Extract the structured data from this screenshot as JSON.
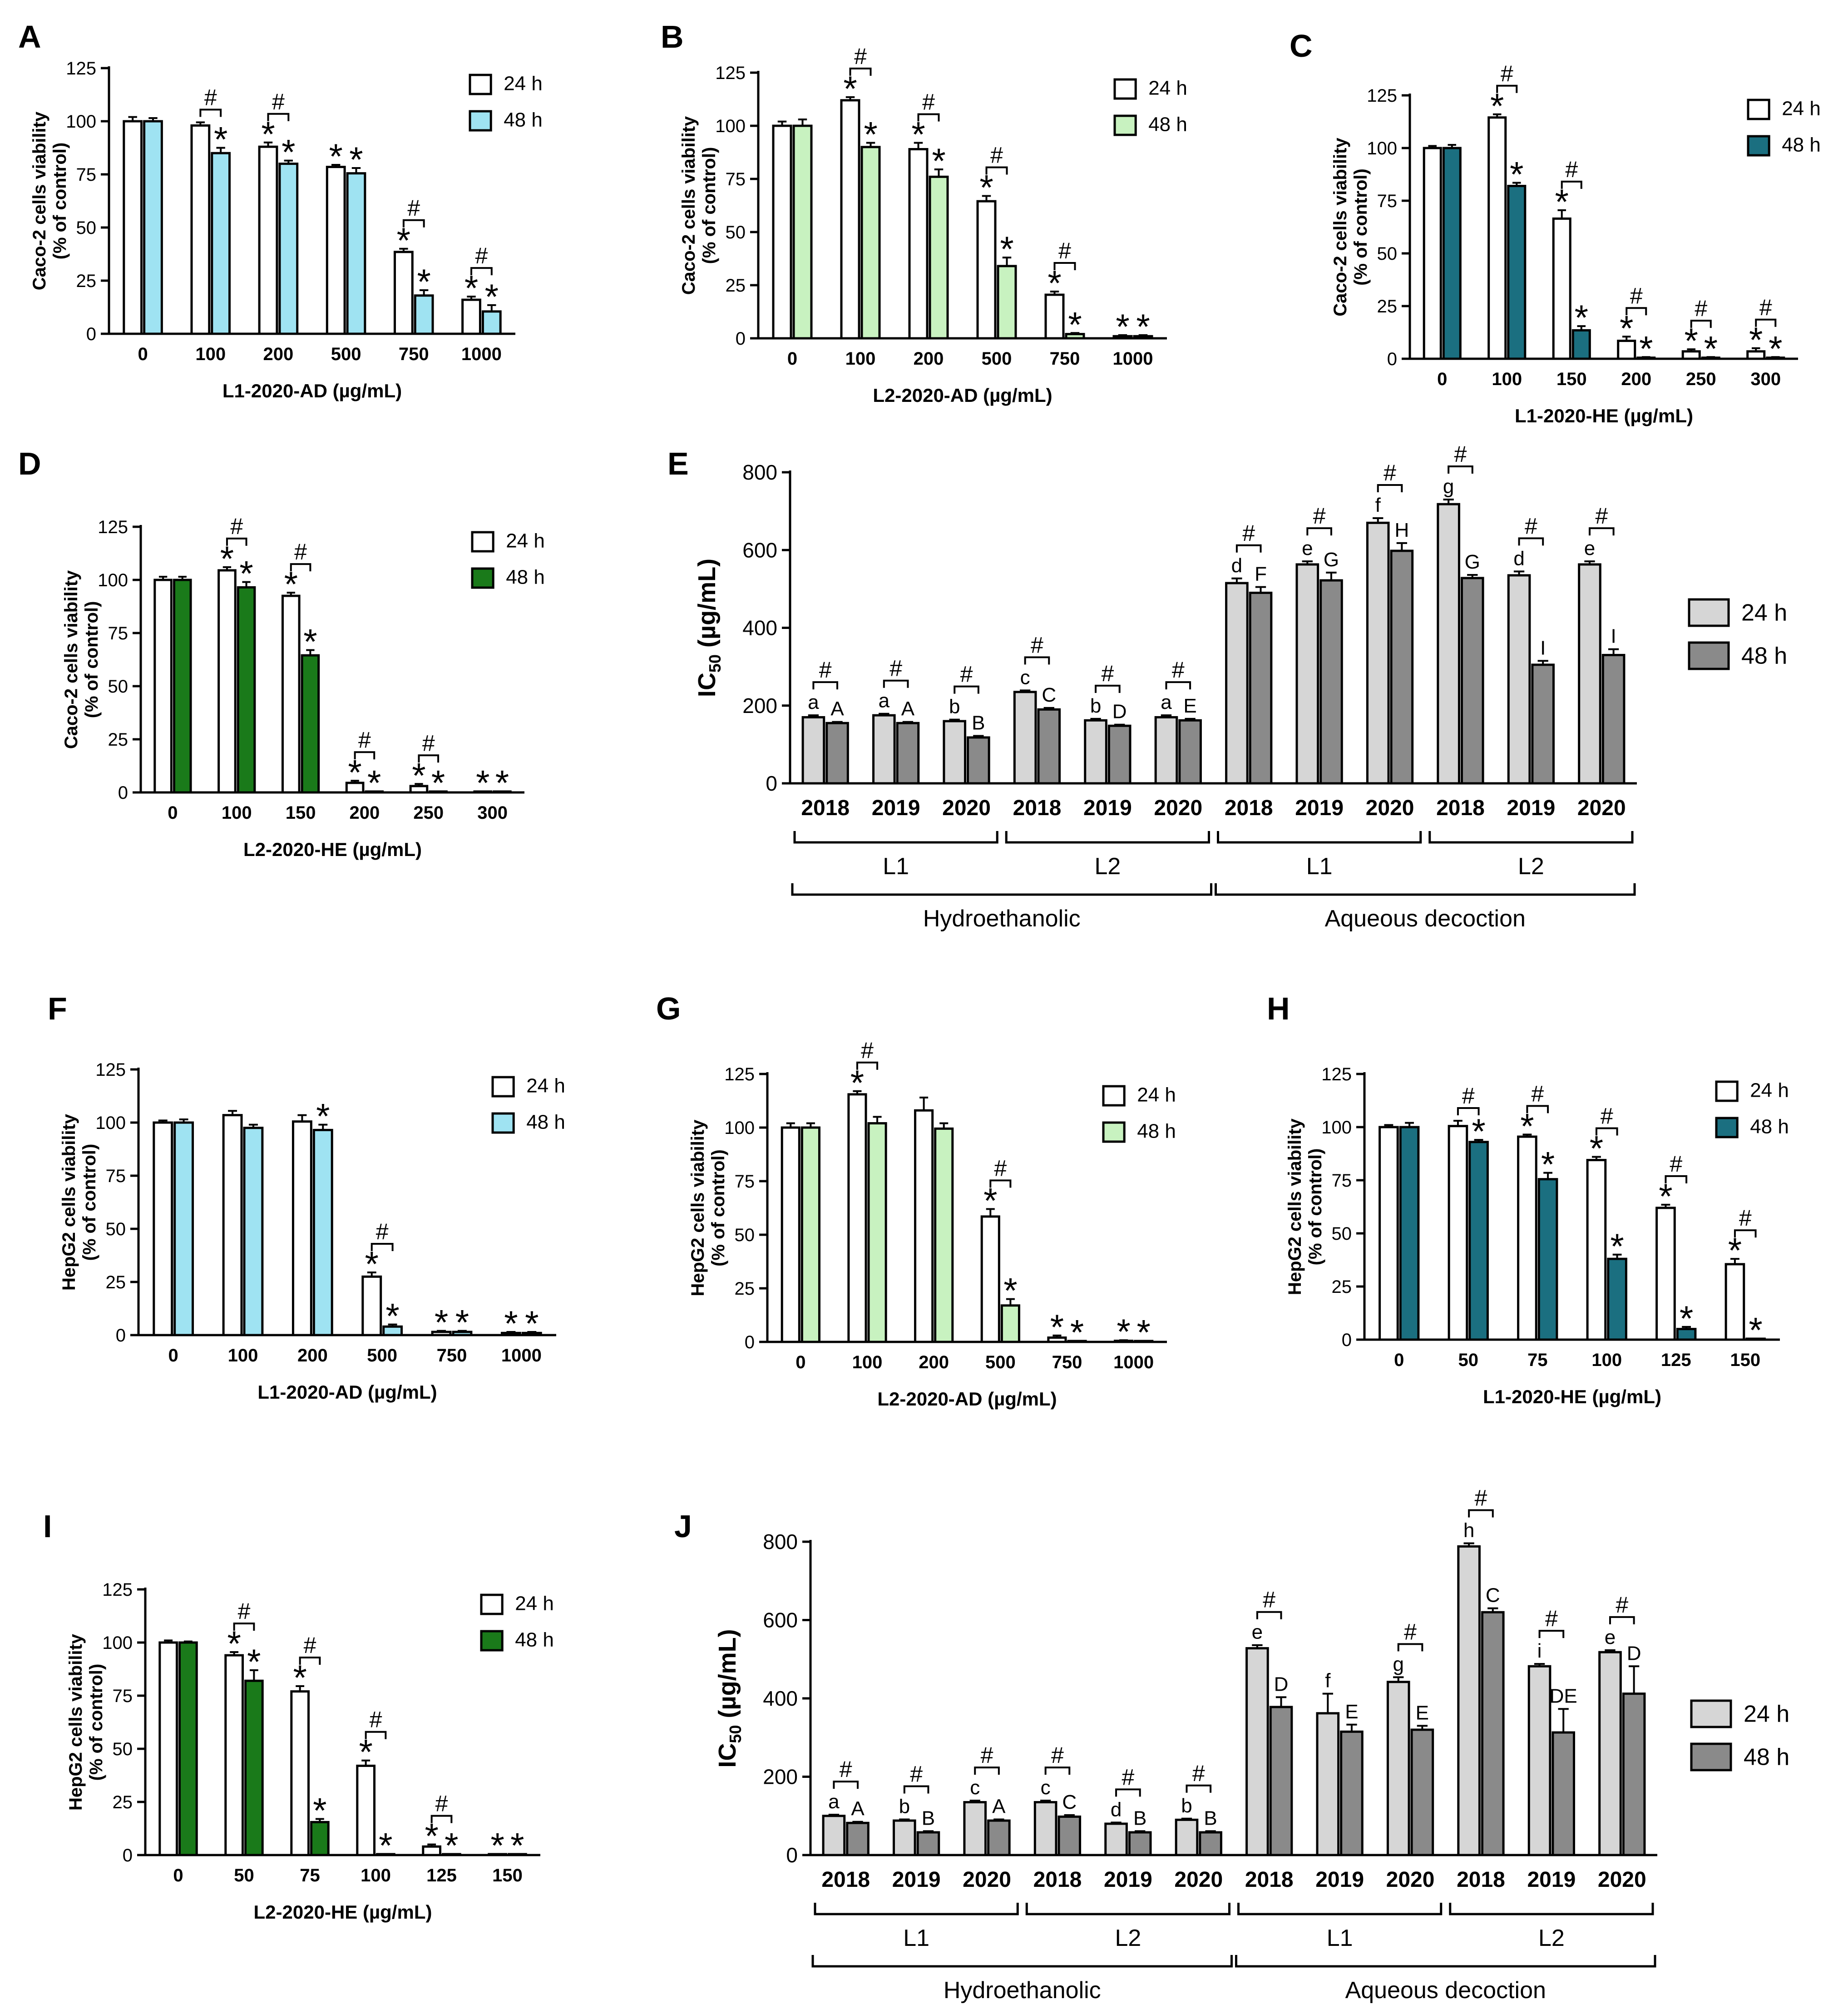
{
  "chart_data": [
    {
      "panel": "A",
      "type": "bar",
      "xlabel": "L1-2020-AD (µg/mL)",
      "ylabel": [
        "Caco-2 cells viability",
        "(% of control)"
      ],
      "ylim": [
        0,
        125
      ],
      "yticks": [
        0,
        25,
        50,
        75,
        100,
        125
      ],
      "categories": [
        "0",
        "100",
        "200",
        "500",
        "750",
        "1000"
      ],
      "series": [
        {
          "name": "24 h",
          "values": [
            100,
            98,
            88,
            78.5,
            38.5,
            16
          ],
          "errors": [
            2,
            1.5,
            2,
            1,
            1.5,
            1.5
          ],
          "marks": [
            "",
            "",
            "*",
            "*",
            "*",
            "*"
          ]
        },
        {
          "name": "48 h",
          "values": [
            100,
            85,
            80,
            75.5,
            18,
            10.5
          ],
          "errors": [
            1.5,
            2.5,
            1.5,
            2.5,
            2.5,
            3
          ],
          "marks": [
            "",
            "*",
            "*",
            "*",
            "*",
            "*"
          ]
        }
      ],
      "diff": [
        false,
        true,
        true,
        false,
        true,
        true
      ],
      "diff_symbol": "#",
      "legend": "top-right"
    },
    {
      "panel": "B",
      "type": "bar",
      "xlabel": "L2-2020-AD (µg/mL)",
      "ylabel": [
        "Caco-2 cells viability",
        "(% of control)"
      ],
      "ylim": [
        0,
        125
      ],
      "yticks": [
        0,
        25,
        50,
        75,
        100,
        125
      ],
      "categories": [
        "0",
        "100",
        "200",
        "500",
        "750",
        "1000"
      ],
      "series": [
        {
          "name": "24 h",
          "values": [
            100,
            112,
            89,
            64.5,
            20.5,
            1
          ],
          "errors": [
            2,
            1.5,
            3,
            2.5,
            1.5,
            0.5
          ],
          "marks": [
            "",
            "*",
            "*",
            "*",
            "*",
            "*"
          ]
        },
        {
          "name": "48 h",
          "values": [
            100,
            90,
            76,
            34,
            2,
            1
          ],
          "errors": [
            3,
            2,
            3.5,
            4,
            0.5,
            0.5
          ],
          "marks": [
            "",
            "*",
            "*",
            "*",
            "*",
            "*"
          ]
        }
      ],
      "diff": [
        false,
        true,
        true,
        true,
        true,
        false
      ],
      "diff_symbol": "#",
      "legend": "top-right"
    },
    {
      "panel": "C",
      "type": "bar",
      "xlabel": "L1-2020-HE (µg/mL)",
      "ylabel": [
        "Caco-2 cells viability",
        "(% of control)"
      ],
      "ylim": [
        0,
        125
      ],
      "yticks": [
        0,
        25,
        50,
        75,
        100,
        125
      ],
      "categories": [
        "0",
        "100",
        "150",
        "200",
        "250",
        "300"
      ],
      "series": [
        {
          "name": "24 h",
          "values": [
            100,
            114.5,
            66.5,
            8.5,
            3.5,
            3.5
          ],
          "errors": [
            1,
            1.5,
            4,
            2,
            1,
            1.5
          ],
          "marks": [
            "",
            "*",
            "*",
            "*",
            "*",
            "*"
          ]
        },
        {
          "name": "48 h",
          "values": [
            100,
            82,
            13.5,
            0.5,
            0.5,
            0.5
          ],
          "errors": [
            1.5,
            1.5,
            2,
            0.3,
            0.3,
            0.3
          ],
          "marks": [
            "",
            "*",
            "*",
            "*",
            "*",
            "*"
          ]
        }
      ],
      "diff": [
        false,
        true,
        true,
        true,
        true,
        true
      ],
      "diff_symbol": "#",
      "legend": "top-right"
    },
    {
      "panel": "D",
      "type": "bar",
      "xlabel": "L2-2020-HE (µg/mL)",
      "ylabel": [
        "Caco-2 cells viability",
        "(% of control)"
      ],
      "ylim": [
        0,
        125
      ],
      "yticks": [
        0,
        25,
        50,
        75,
        100,
        125
      ],
      "categories": [
        "0",
        "100",
        "150",
        "200",
        "250",
        "300"
      ],
      "series": [
        {
          "name": "24 h",
          "values": [
            100,
            104.5,
            92.5,
            4.5,
            3,
            0.3
          ],
          "errors": [
            1.5,
            1.5,
            1.5,
            1,
            1,
            0.2
          ],
          "marks": [
            "",
            "*",
            "*",
            "*",
            "*",
            "*"
          ]
        },
        {
          "name": "48 h",
          "values": [
            100,
            96.5,
            64.5,
            0.3,
            0.3,
            0.3
          ],
          "errors": [
            1.5,
            2.5,
            2.5,
            0.2,
            0.2,
            0.2
          ],
          "marks": [
            "",
            "*",
            "*",
            "*",
            "*",
            "*"
          ]
        }
      ],
      "diff": [
        false,
        true,
        true,
        true,
        true,
        false
      ],
      "diff_symbol": "#",
      "legend": "top-right"
    },
    {
      "panel": "E",
      "type": "bar",
      "xlabel": "",
      "ylabel": "IC50 (µg/mL)",
      "ylim": [
        0,
        800
      ],
      "yticks": [
        0,
        200,
        400,
        600,
        800
      ],
      "categories": [
        "2018",
        "2019",
        "2020",
        "2018",
        "2019",
        "2020",
        "2018",
        "2019",
        "2020",
        "2018",
        "2019",
        "2020"
      ],
      "series": [
        {
          "name": "24 h",
          "values": [
            170,
            175,
            160,
            235,
            162,
            170,
            515,
            563,
            670,
            718,
            535,
            563
          ],
          "errors": [
            5,
            4,
            4,
            4,
            4,
            5,
            12,
            8,
            12,
            12,
            10,
            8
          ],
          "marks": [
            "a",
            "a",
            "b",
            "c",
            "b",
            "a",
            "d",
            "e",
            "f",
            "g",
            "d",
            "e"
          ]
        },
        {
          "name": "48 h",
          "values": [
            155,
            155,
            118,
            190,
            148,
            162,
            490,
            522,
            598,
            528,
            305,
            330
          ],
          "errors": [
            3,
            3,
            4,
            4,
            3,
            4,
            15,
            20,
            20,
            8,
            10,
            15
          ],
          "marks": [
            "A",
            "A",
            "B",
            "C",
            "D",
            "E",
            "F",
            "G",
            "H",
            "G",
            "I",
            "I"
          ]
        }
      ],
      "diff": [
        true,
        true,
        true,
        true,
        true,
        true,
        true,
        true,
        true,
        true,
        true,
        true
      ],
      "diff_symbol": "#",
      "group_labels": [
        {
          "label": "L1",
          "from": 0,
          "to": 2
        },
        {
          "label": "L2",
          "from": 3,
          "to": 5
        },
        {
          "label": "L1",
          "from": 6,
          "to": 8
        },
        {
          "label": "L2",
          "from": 9,
          "to": 11
        }
      ],
      "super_labels": [
        {
          "label": "Hydroethanolic",
          "from": 0,
          "to": 5
        },
        {
          "label": "Aqueous decoction",
          "from": 6,
          "to": 11
        }
      ],
      "legend": "right"
    },
    {
      "panel": "F",
      "type": "bar",
      "xlabel": "L1-2020-AD (µg/mL)",
      "ylabel": [
        "HepG2 cells viability",
        "(% of control)"
      ],
      "ylim": [
        0,
        125
      ],
      "yticks": [
        0,
        25,
        50,
        75,
        100,
        125
      ],
      "categories": [
        "0",
        "100",
        "200",
        "500",
        "750",
        "1000"
      ],
      "series": [
        {
          "name": "24 h",
          "values": [
            100,
            103.5,
            100.5,
            27.5,
            1.5,
            1
          ],
          "errors": [
            1,
            2,
            3,
            2,
            0.5,
            0.5
          ],
          "marks": [
            "",
            "",
            "",
            "*",
            "*",
            "*"
          ]
        },
        {
          "name": "48 h",
          "values": [
            100,
            97.5,
            96.5,
            4,
            1.5,
            1
          ],
          "errors": [
            1.5,
            1.5,
            2.5,
            1,
            0.5,
            0.5
          ],
          "marks": [
            "",
            "",
            "*",
            "*",
            "*",
            "*"
          ]
        }
      ],
      "diff": [
        false,
        false,
        false,
        true,
        false,
        false
      ],
      "diff_symbol": "#",
      "legend": "top-right"
    },
    {
      "panel": "G",
      "type": "bar",
      "xlabel": "L2-2020-AD (µg/mL)",
      "ylabel": [
        "HepG2 cells viability",
        "(% of control)"
      ],
      "ylim": [
        0,
        125
      ],
      "yticks": [
        0,
        25,
        50,
        75,
        100,
        125
      ],
      "categories": [
        "0",
        "100",
        "200",
        "500",
        "750",
        "1000"
      ],
      "series": [
        {
          "name": "24 h",
          "values": [
            100,
            115.5,
            108,
            58.5,
            2,
            0.5
          ],
          "errors": [
            2,
            1.5,
            6,
            3.5,
            1,
            0.3
          ],
          "marks": [
            "",
            "*",
            "",
            "*",
            "*",
            "*"
          ]
        },
        {
          "name": "48 h",
          "values": [
            100,
            102,
            99.5,
            17,
            0.3,
            0.3
          ],
          "errors": [
            2,
            3,
            2.5,
            3,
            0.2,
            0.2
          ],
          "marks": [
            "",
            "",
            "",
            "*",
            "*",
            "*"
          ]
        }
      ],
      "diff": [
        false,
        true,
        false,
        true,
        false,
        false
      ],
      "diff_symbol": "#",
      "legend": "top-right"
    },
    {
      "panel": "H",
      "type": "bar",
      "xlabel": "L1-2020-HE (µg/mL)",
      "ylabel": [
        "HepG2 cells viability",
        "(% of control)"
      ],
      "ylim": [
        0,
        125
      ],
      "yticks": [
        0,
        25,
        50,
        75,
        100,
        125
      ],
      "categories": [
        "0",
        "50",
        "75",
        "100",
        "125",
        "150"
      ],
      "series": [
        {
          "name": "24 h",
          "values": [
            100,
            100.5,
            95.5,
            84.5,
            62,
            35.5
          ],
          "errors": [
            1,
            2.5,
            1,
            1.5,
            1.5,
            2.5
          ],
          "marks": [
            "",
            "",
            "*",
            "*",
            "*",
            "*"
          ]
        },
        {
          "name": "48 h",
          "values": [
            100,
            93,
            75.5,
            38,
            5,
            0.3
          ],
          "errors": [
            2,
            1,
            3,
            2,
            1,
            0.2
          ],
          "marks": [
            "",
            "*",
            "*",
            "*",
            "*",
            "*"
          ]
        }
      ],
      "diff": [
        false,
        true,
        true,
        true,
        true,
        true
      ],
      "diff_symbol": "#",
      "legend": "top-right"
    },
    {
      "panel": "I",
      "type": "bar",
      "xlabel": "L2-2020-HE (µg/mL)",
      "ylabel": [
        "HepG2 cells viability",
        "(% of control)"
      ],
      "ylim": [
        0,
        125
      ],
      "yticks": [
        0,
        25,
        50,
        75,
        100,
        125
      ],
      "categories": [
        "0",
        "50",
        "75",
        "100",
        "125",
        "150"
      ],
      "series": [
        {
          "name": "24 h",
          "values": [
            100,
            94,
            77,
            42,
            4,
            0.3
          ],
          "errors": [
            1,
            1.5,
            2.5,
            2.5,
            1,
            0.2
          ],
          "marks": [
            "",
            "*",
            "*",
            "*",
            "*",
            "*"
          ]
        },
        {
          "name": "48 h",
          "values": [
            100,
            82,
            15.5,
            0.3,
            0.3,
            0.3
          ],
          "errors": [
            0.5,
            5,
            1.5,
            0.2,
            0.2,
            0.2
          ],
          "marks": [
            "",
            "*",
            "*",
            "*",
            "*",
            "*"
          ]
        }
      ],
      "diff": [
        false,
        true,
        true,
        true,
        true,
        false
      ],
      "diff_symbol": "#",
      "legend": "top-right"
    },
    {
      "panel": "J",
      "type": "bar",
      "xlabel": "",
      "ylabel": "IC50 (µg/mL)",
      "ylim": [
        0,
        800
      ],
      "yticks": [
        0,
        200,
        400,
        600,
        800
      ],
      "categories": [
        "2018",
        "2019",
        "2020",
        "2018",
        "2019",
        "2020",
        "2018",
        "2019",
        "2020",
        "2018",
        "2019",
        "2020"
      ],
      "series": [
        {
          "name": "24 h",
          "values": [
            100,
            88,
            135,
            135,
            80,
            90,
            528,
            362,
            442,
            788,
            482,
            518
          ],
          "errors": [
            3,
            3,
            4,
            4,
            3,
            3,
            8,
            50,
            12,
            8,
            6,
            5
          ],
          "marks": [
            "a",
            "b",
            "c",
            "c",
            "d",
            "b",
            "e",
            "f",
            "g",
            "h",
            "i",
            "e"
          ]
        },
        {
          "name": "48 h",
          "values": [
            82,
            58,
            88,
            98,
            58,
            58,
            378,
            315,
            320,
            620,
            313,
            412
          ],
          "errors": [
            3,
            3,
            3,
            4,
            3,
            3,
            25,
            18,
            10,
            10,
            60,
            70
          ],
          "marks": [
            "A",
            "B",
            "A",
            "C",
            "B",
            "B",
            "D",
            "E",
            "E",
            "C",
            "DE",
            "D"
          ]
        }
      ],
      "diff": [
        true,
        true,
        true,
        true,
        true,
        true,
        true,
        false,
        true,
        true,
        true,
        true
      ],
      "diff_symbol": "#",
      "group_labels": [
        {
          "label": "L1",
          "from": 0,
          "to": 2
        },
        {
          "label": "L2",
          "from": 3,
          "to": 5
        },
        {
          "label": "L1",
          "from": 6,
          "to": 8
        },
        {
          "label": "L2",
          "from": 9,
          "to": 11
        }
      ],
      "super_labels": [
        {
          "label": "Hydroethanolic",
          "from": 0,
          "to": 5
        },
        {
          "label": "Aqueous decoction",
          "from": 6,
          "to": 11
        }
      ],
      "legend": "right"
    }
  ],
  "colors": {
    "A": "#9fe3f2",
    "B": "#c8f2c0",
    "C": "#1b6f80",
    "D": "#1a7a1a",
    "F": "#9fe3f2",
    "G": "#c8f2c0",
    "H": "#1b6f80",
    "I": "#1a7a1a",
    "ic50_24h": "#d6d6d6",
    "ic50_48h": "#8a8a8a",
    "bar_24h": "#ffffff",
    "ink": "#000000"
  }
}
